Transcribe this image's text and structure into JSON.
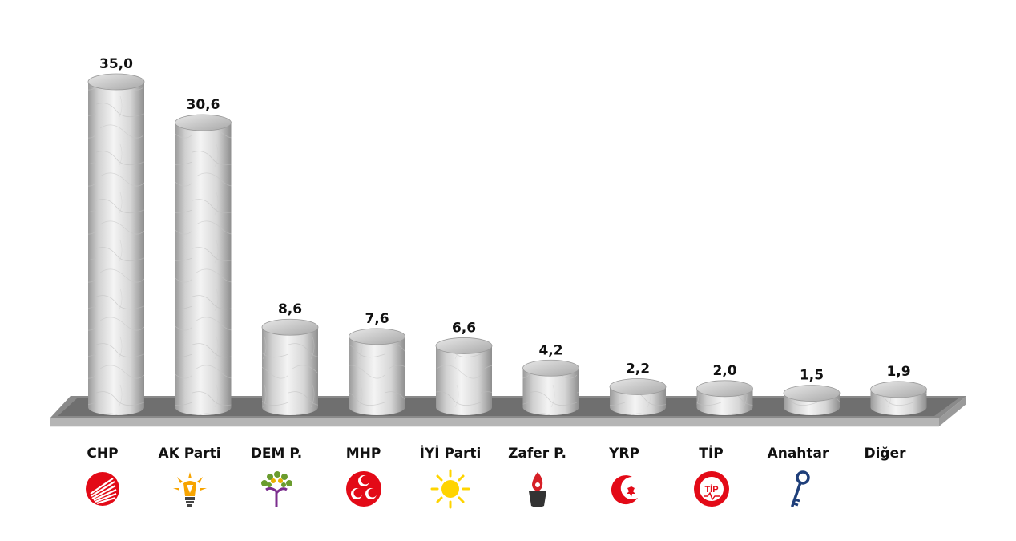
{
  "chart_data": {
    "type": "bar",
    "style": "3d-cylinder",
    "categories": [
      "CHP",
      "AK Parti",
      "DEM P.",
      "MHP",
      "İYİ Parti",
      "Zafer P.",
      "YRP",
      "TİP",
      "Anahtar",
      "Diğer"
    ],
    "values": [
      35.0,
      30.6,
      8.6,
      7.6,
      6.6,
      4.2,
      2.2,
      2.0,
      1.5,
      1.9
    ],
    "value_labels": [
      "35,0",
      "30,6",
      "8,6",
      "7,6",
      "6,6",
      "4,2",
      "2,2",
      "2,0",
      "1,5",
      "1,9"
    ],
    "title": "",
    "xlabel": "",
    "ylabel": "",
    "ylim": [
      0,
      36
    ],
    "grid": false,
    "legend": "none",
    "colors": {
      "bar": "#d8d8d8",
      "floor": "#7a7a7a",
      "text": "#111111"
    },
    "logos": [
      {
        "icon": "chp-six-arrows-icon",
        "color": "#e30a17"
      },
      {
        "icon": "akp-lightbulb-icon",
        "color": "#f7a400"
      },
      {
        "icon": "dem-tree-icon",
        "color": "#6a9c2e"
      },
      {
        "icon": "mhp-three-crescents-icon",
        "color": "#e30a17"
      },
      {
        "icon": "iyi-sun-icon",
        "color": "#ffd400"
      },
      {
        "icon": "zafer-torch-icon",
        "color": "#d61f26"
      },
      {
        "icon": "yrp-crescent-icon",
        "color": "#e30a17"
      },
      {
        "icon": "tip-seal-icon",
        "color": "#e30a17"
      },
      {
        "icon": "anahtar-key-icon",
        "color": "#1f3f7a"
      },
      {
        "icon": "",
        "color": ""
      }
    ]
  }
}
